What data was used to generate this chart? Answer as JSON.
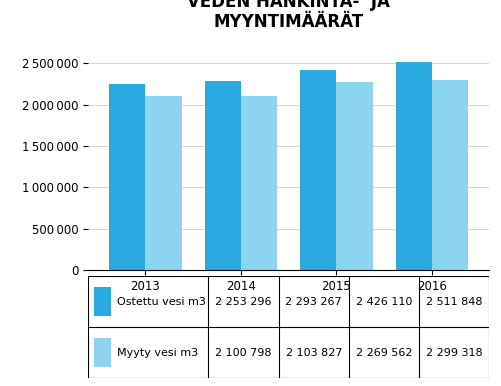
{
  "title": "VEDEN HANKINTA-  JA\nMYYNTIMÄÄRÄT",
  "years": [
    "2013",
    "2014",
    "2015",
    "2016"
  ],
  "series": [
    {
      "label": "Ostettu vesi m3",
      "values": [
        2253296,
        2293267,
        2426110,
        2511848
      ],
      "color": "#29abe2"
    },
    {
      "label": "Myyty vesi m3",
      "values": [
        2100798,
        2103827,
        2269562,
        2299318
      ],
      "color": "#8dd4f0"
    }
  ],
  "table_rows": [
    [
      "Ostettu vesi m3",
      "2 253 296",
      "2 293 267",
      "2 426 110",
      "2 511 848"
    ],
    [
      "Myyty vesi m3",
      "2 100 798",
      "2 103 827",
      "2 269 562",
      "2 299 318"
    ]
  ],
  "ylim": [
    0,
    2800000
  ],
  "yticks": [
    0,
    500000,
    1000000,
    1500000,
    2000000,
    2500000
  ],
  "bar_width": 0.38,
  "background_color": "#ffffff",
  "title_fontsize": 12,
  "tick_fontsize": 8.5,
  "table_fontsize": 8
}
